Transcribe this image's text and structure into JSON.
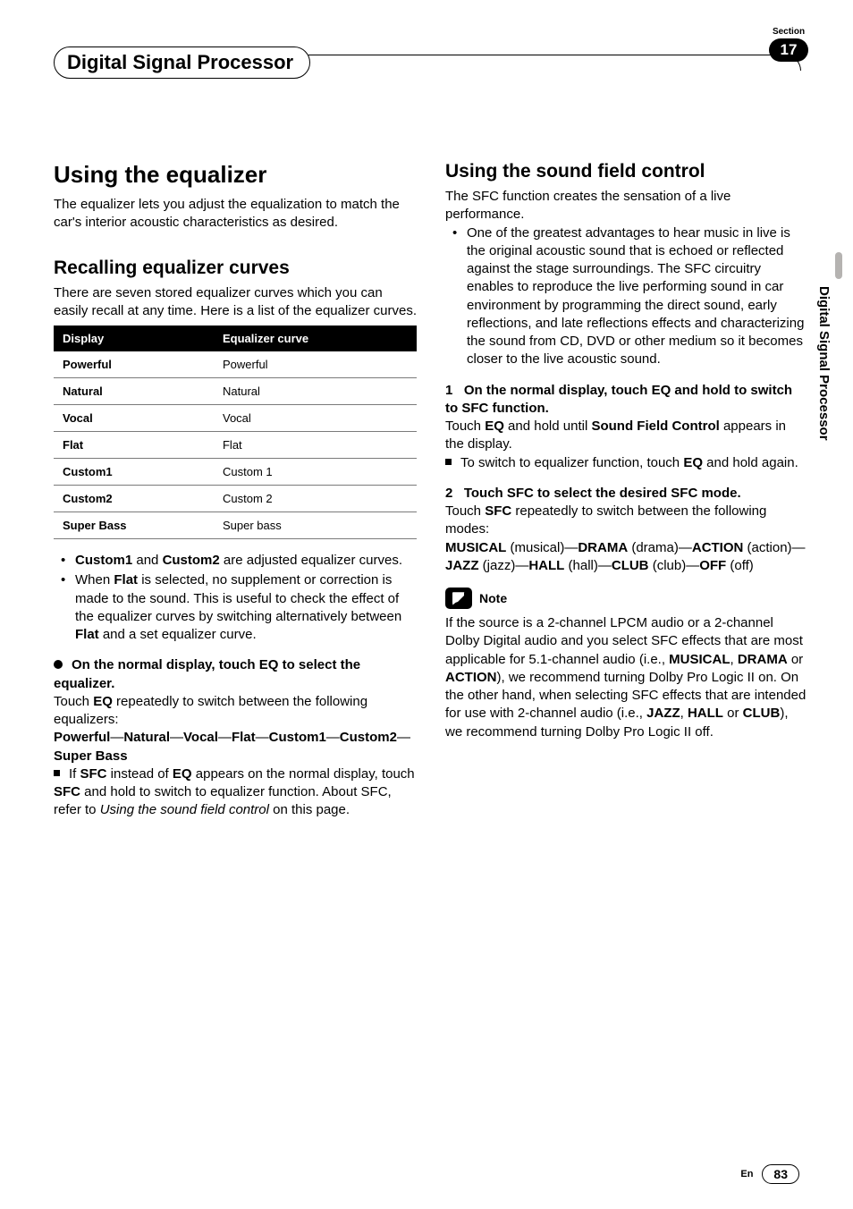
{
  "header": {
    "chapter_title": "Digital Signal Processor",
    "section_label": "Section",
    "section_number": "17",
    "side_tab": "Digital Signal Processor"
  },
  "left": {
    "h1": "Using the equalizer",
    "intro": "The equalizer lets you adjust the equalization to match the car's interior acoustic characteristics as desired.",
    "h2": "Recalling equalizer curves",
    "curves_intro": "There are seven stored equalizer curves which you can easily recall at any time. Here is a list of the equalizer curves.",
    "table": {
      "col1": "Display",
      "col2": "Equalizer curve",
      "rows": [
        [
          "Powerful",
          "Powerful"
        ],
        [
          "Natural",
          "Natural"
        ],
        [
          "Vocal",
          "Vocal"
        ],
        [
          "Flat",
          "Flat"
        ],
        [
          "Custom1",
          "Custom 1"
        ],
        [
          "Custom2",
          "Custom 2"
        ],
        [
          "Super Bass",
          "Super bass"
        ]
      ]
    },
    "bullets_html": [
      "<b>Custom1</b> and <b>Custom2</b> are adjusted equalizer curves.",
      "When <b>Flat</b> is selected, no supplement or correction is made to the sound. This is useful to check the effect of the equalizer curves by switching alternatively between <b>Flat</b> and a set equalizer curve."
    ],
    "step_head": "On the normal display, touch EQ to select the equalizer.",
    "step_body_html": "Touch <b>EQ</b> repeatedly to switch between the following equalizers:",
    "eq_list_html": "<b>Powerful</b>—<b>Natural</b>—<b>Vocal</b>—<b>Flat</b>—<b>Custom1</b>—<b>Custom2</b>—<b>Super Bass</b>",
    "sfc_note_html": "If <b>SFC</b> instead of <b>EQ</b> appears on the normal display, touch <b>SFC</b> and hold to switch to equalizer function. About SFC, refer to <i>Using the sound field control</i> on this page."
  },
  "right": {
    "h2": "Using the sound field control",
    "intro": "The SFC function creates the sensation of a live performance.",
    "bullet": "One of the greatest advantages to hear music in live is the original acoustic sound that is echoed or reflected against the stage surroundings. The SFC circuitry enables to reproduce the live performing sound in car environment by programming the direct sound, early reflections, and late reflections effects and characterizing the sound from CD, DVD or other medium so it becomes closer to the live acoustic sound.",
    "step1_head_html": "1&nbsp;&nbsp;&nbsp;On the normal display, touch EQ and hold to switch to SFC function.",
    "step1_body_html": "Touch <b>EQ</b> and hold until <b>Sound Field Control</b> appears in the display.",
    "step1_sq_html": "To switch to equalizer function, touch <b>EQ</b> and hold again.",
    "step2_head_html": "2&nbsp;&nbsp;&nbsp;Touch SFC to select the desired SFC mode.",
    "step2_body_html": "Touch <b>SFC</b> repeatedly to switch between the following modes:",
    "modes_html": "<b>MUSICAL</b> (musical)—<b>DRAMA</b> (drama)—<b>ACTION</b> (action)—<b>JAZZ</b> (jazz)—<b>HALL</b> (hall)—<b>CLUB</b> (club)—<b>OFF</b> (off)",
    "note_label": "Note",
    "note_body_html": "If the source is a 2-channel LPCM audio or a 2-channel Dolby Digital audio and you select SFC effects that are most applicable for 5.1-channel audio (i.e., <b>MUSICAL</b>, <b>DRAMA</b> or <b>ACTION</b>), we recommend turning Dolby Pro Logic II on. On the other hand, when selecting SFC effects that are intended for use with 2-channel audio (i.e., <b>JAZZ</b>, <b>HALL</b> or <b>CLUB</b>), we recommend turning Dolby Pro Logic II off."
  },
  "footer": {
    "lang": "En",
    "page": "83"
  }
}
